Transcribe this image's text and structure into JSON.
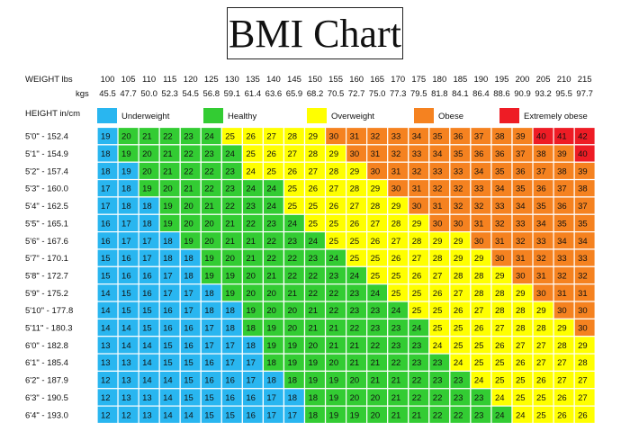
{
  "title": "BMI Chart",
  "weight_label": "WEIGHT lbs",
  "kgs_label": "kgs",
  "height_label": "HEIGHT in/cm",
  "colors": {
    "underweight": "#29b6f0",
    "healthy": "#33cc33",
    "overweight": "#ffff00",
    "obese": "#f58220",
    "extremely_obese": "#ee1c25",
    "grid": "#ffffff"
  },
  "chart_data": {
    "type": "heatmap",
    "title": "BMI Chart",
    "x_lbs": [
      "100",
      "105",
      "110",
      "115",
      "120",
      "125",
      "130",
      "135",
      "140",
      "145",
      "150",
      "155",
      "160",
      "165",
      "170",
      "175",
      "180",
      "185",
      "190",
      "195",
      "200",
      "205",
      "210",
      "215"
    ],
    "x_kgs": [
      "45.5",
      "47.7",
      "50.0",
      "52.3",
      "54.5",
      "56.8",
      "59.1",
      "61.4",
      "63.6",
      "65.9",
      "68.2",
      "70.5",
      "72.7",
      "75.0",
      "77.3",
      "79.5",
      "81.8",
      "84.1",
      "86.4",
      "88.6",
      "90.9",
      "93.2",
      "95.5",
      "97.7"
    ],
    "heights": [
      "5'0\" - 152.4",
      "5'1\" - 154.9",
      "5'2\" - 157.4",
      "5'3\" - 160.0",
      "5'4\" - 162.5",
      "5'5\" - 165.1",
      "5'6\" - 167.6",
      "5'7\" - 170.1",
      "5'8\" - 172.7",
      "5'9\" - 175.2",
      "5'10\" - 177.8",
      "5'11\" - 180.3",
      "6'0\" - 182.8",
      "6'1\" - 185.4",
      "6'2\" - 187.9",
      "6'3\" - 190.5",
      "6'4\" - 193.0"
    ],
    "legend": [
      {
        "label": "Underweight",
        "category": "underweight"
      },
      {
        "label": "Healthy",
        "category": "healthy"
      },
      {
        "label": "Overweight",
        "category": "overweight"
      },
      {
        "label": "Obese",
        "category": "obese"
      },
      {
        "label": "Extremely obese",
        "category": "extremely_obese"
      }
    ],
    "values": [
      [
        19,
        20,
        21,
        22,
        23,
        24,
        25,
        26,
        27,
        28,
        29,
        30,
        31,
        32,
        33,
        34,
        35,
        36,
        37,
        38,
        39,
        40,
        41,
        42
      ],
      [
        18,
        19,
        20,
        21,
        22,
        23,
        24,
        25,
        26,
        27,
        28,
        29,
        30,
        31,
        32,
        33,
        34,
        35,
        36,
        36,
        37,
        38,
        39,
        40
      ],
      [
        18,
        19,
        20,
        21,
        22,
        22,
        23,
        24,
        25,
        26,
        27,
        28,
        29,
        30,
        31,
        32,
        33,
        33,
        34,
        35,
        36,
        37,
        38,
        39
      ],
      [
        17,
        18,
        19,
        20,
        21,
        22,
        23,
        24,
        24,
        25,
        26,
        27,
        28,
        29,
        30,
        31,
        32,
        32,
        33,
        34,
        35,
        36,
        37,
        38
      ],
      [
        17,
        18,
        18,
        19,
        20,
        21,
        22,
        23,
        24,
        25,
        25,
        26,
        27,
        28,
        29,
        30,
        31,
        32,
        32,
        33,
        34,
        35,
        36,
        37
      ],
      [
        16,
        17,
        18,
        19,
        20,
        20,
        21,
        22,
        23,
        24,
        25,
        25,
        26,
        27,
        28,
        29,
        30,
        30,
        31,
        32,
        33,
        34,
        35,
        35
      ],
      [
        16,
        17,
        17,
        18,
        19,
        20,
        21,
        21,
        22,
        23,
        24,
        25,
        25,
        26,
        27,
        28,
        29,
        29,
        30,
        31,
        32,
        33,
        34,
        34
      ],
      [
        15,
        16,
        17,
        18,
        18,
        19,
        20,
        21,
        22,
        22,
        23,
        24,
        25,
        25,
        26,
        27,
        28,
        29,
        29,
        30,
        31,
        32,
        33,
        33
      ],
      [
        15,
        16,
        16,
        17,
        18,
        19,
        19,
        20,
        21,
        22,
        22,
        23,
        24,
        25,
        25,
        26,
        27,
        28,
        28,
        29,
        30,
        31,
        32,
        32
      ],
      [
        14,
        15,
        16,
        17,
        17,
        18,
        19,
        20,
        20,
        21,
        22,
        22,
        23,
        24,
        25,
        25,
        26,
        27,
        28,
        28,
        29,
        30,
        31,
        31
      ],
      [
        14,
        15,
        15,
        16,
        17,
        18,
        18,
        19,
        20,
        20,
        21,
        22,
        23,
        23,
        24,
        25,
        25,
        26,
        27,
        28,
        28,
        29,
        30,
        30
      ],
      [
        14,
        14,
        15,
        16,
        16,
        17,
        18,
        18,
        19,
        20,
        21,
        21,
        22,
        23,
        23,
        24,
        25,
        25,
        26,
        27,
        28,
        28,
        29,
        30
      ],
      [
        13,
        14,
        14,
        15,
        16,
        17,
        17,
        18,
        19,
        19,
        20,
        21,
        21,
        22,
        23,
        23,
        24,
        25,
        25,
        26,
        27,
        27,
        28,
        29
      ],
      [
        13,
        13,
        14,
        15,
        15,
        16,
        17,
        17,
        18,
        19,
        19,
        20,
        21,
        21,
        22,
        23,
        23,
        24,
        25,
        25,
        26,
        27,
        27,
        28
      ],
      [
        12,
        13,
        14,
        14,
        15,
        16,
        16,
        17,
        18,
        18,
        19,
        19,
        20,
        21,
        21,
        22,
        23,
        23,
        24,
        25,
        25,
        26,
        27,
        27
      ],
      [
        12,
        13,
        13,
        14,
        15,
        15,
        16,
        16,
        17,
        18,
        18,
        19,
        20,
        20,
        21,
        22,
        22,
        23,
        23,
        24,
        25,
        25,
        26,
        27
      ],
      [
        12,
        12,
        13,
        14,
        14,
        15,
        15,
        16,
        17,
        17,
        18,
        19,
        19,
        20,
        21,
        21,
        22,
        22,
        23,
        24,
        24,
        25,
        26,
        26
      ]
    ],
    "categories": [
      [
        "u",
        "h",
        "h",
        "h",
        "h",
        "h",
        "o",
        "o",
        "o",
        "o",
        "o",
        "b",
        "b",
        "b",
        "b",
        "b",
        "b",
        "b",
        "b",
        "b",
        "b",
        "e",
        "e",
        "e"
      ],
      [
        "u",
        "h",
        "h",
        "h",
        "h",
        "h",
        "h",
        "o",
        "o",
        "o",
        "o",
        "o",
        "b",
        "b",
        "b",
        "b",
        "b",
        "b",
        "b",
        "b",
        "b",
        "b",
        "b",
        "e"
      ],
      [
        "u",
        "u",
        "h",
        "h",
        "h",
        "h",
        "h",
        "o",
        "o",
        "o",
        "o",
        "o",
        "o",
        "b",
        "b",
        "b",
        "b",
        "b",
        "b",
        "b",
        "b",
        "b",
        "b",
        "b"
      ],
      [
        "u",
        "u",
        "h",
        "h",
        "h",
        "h",
        "h",
        "h",
        "h",
        "o",
        "o",
        "o",
        "o",
        "o",
        "b",
        "b",
        "b",
        "b",
        "b",
        "b",
        "b",
        "b",
        "b",
        "b"
      ],
      [
        "u",
        "u",
        "u",
        "h",
        "h",
        "h",
        "h",
        "h",
        "h",
        "o",
        "o",
        "o",
        "o",
        "o",
        "o",
        "b",
        "b",
        "b",
        "b",
        "b",
        "b",
        "b",
        "b",
        "b"
      ],
      [
        "u",
        "u",
        "u",
        "h",
        "h",
        "h",
        "h",
        "h",
        "h",
        "h",
        "o",
        "o",
        "o",
        "o",
        "o",
        "o",
        "b",
        "b",
        "b",
        "b",
        "b",
        "b",
        "b",
        "b"
      ],
      [
        "u",
        "u",
        "u",
        "u",
        "h",
        "h",
        "h",
        "h",
        "h",
        "h",
        "h",
        "o",
        "o",
        "o",
        "o",
        "o",
        "o",
        "o",
        "b",
        "b",
        "b",
        "b",
        "b",
        "b"
      ],
      [
        "u",
        "u",
        "u",
        "u",
        "u",
        "h",
        "h",
        "h",
        "h",
        "h",
        "h",
        "h",
        "o",
        "o",
        "o",
        "o",
        "o",
        "o",
        "o",
        "b",
        "b",
        "b",
        "b",
        "b"
      ],
      [
        "u",
        "u",
        "u",
        "u",
        "u",
        "h",
        "h",
        "h",
        "h",
        "h",
        "h",
        "h",
        "h",
        "o",
        "o",
        "o",
        "o",
        "o",
        "o",
        "o",
        "b",
        "b",
        "b",
        "b"
      ],
      [
        "u",
        "u",
        "u",
        "u",
        "u",
        "u",
        "h",
        "h",
        "h",
        "h",
        "h",
        "h",
        "h",
        "h",
        "o",
        "o",
        "o",
        "o",
        "o",
        "o",
        "o",
        "b",
        "b",
        "b"
      ],
      [
        "u",
        "u",
        "u",
        "u",
        "u",
        "u",
        "u",
        "h",
        "h",
        "h",
        "h",
        "h",
        "h",
        "h",
        "h",
        "o",
        "o",
        "o",
        "o",
        "o",
        "o",
        "o",
        "b",
        "b"
      ],
      [
        "u",
        "u",
        "u",
        "u",
        "u",
        "u",
        "u",
        "h",
        "h",
        "h",
        "h",
        "h",
        "h",
        "h",
        "h",
        "h",
        "o",
        "o",
        "o",
        "o",
        "o",
        "o",
        "o",
        "b"
      ],
      [
        "u",
        "u",
        "u",
        "u",
        "u",
        "u",
        "u",
        "u",
        "h",
        "h",
        "h",
        "h",
        "h",
        "h",
        "h",
        "h",
        "o",
        "o",
        "o",
        "o",
        "o",
        "o",
        "o",
        "o"
      ],
      [
        "u",
        "u",
        "u",
        "u",
        "u",
        "u",
        "u",
        "u",
        "h",
        "h",
        "h",
        "h",
        "h",
        "h",
        "h",
        "h",
        "h",
        "o",
        "o",
        "o",
        "o",
        "o",
        "o",
        "o"
      ],
      [
        "u",
        "u",
        "u",
        "u",
        "u",
        "u",
        "u",
        "u",
        "u",
        "h",
        "h",
        "h",
        "h",
        "h",
        "h",
        "h",
        "h",
        "h",
        "o",
        "o",
        "o",
        "o",
        "o",
        "o"
      ],
      [
        "u",
        "u",
        "u",
        "u",
        "u",
        "u",
        "u",
        "u",
        "u",
        "u",
        "h",
        "h",
        "h",
        "h",
        "h",
        "h",
        "h",
        "h",
        "h",
        "o",
        "o",
        "o",
        "o",
        "o"
      ],
      [
        "u",
        "u",
        "u",
        "u",
        "u",
        "u",
        "u",
        "u",
        "u",
        "u",
        "h",
        "h",
        "h",
        "h",
        "h",
        "h",
        "h",
        "h",
        "h",
        "h",
        "o",
        "o",
        "o",
        "o"
      ]
    ]
  }
}
